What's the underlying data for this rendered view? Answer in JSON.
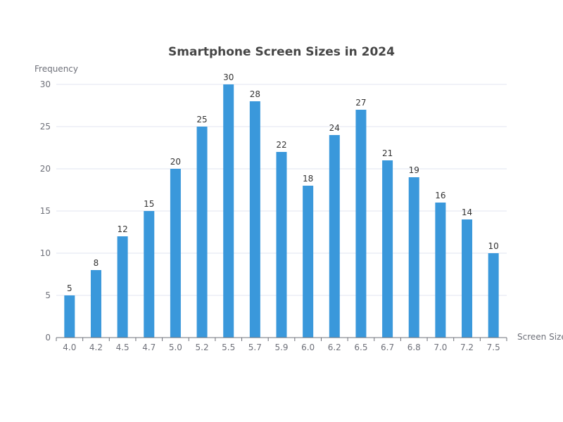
{
  "chart_data": {
    "type": "bar",
    "title": "Smartphone Screen Sizes in 2024",
    "xlabel": "Screen Size",
    "ylabel": "Frequency",
    "categories": [
      "4.0",
      "4.2",
      "4.5",
      "4.7",
      "5.0",
      "5.2",
      "5.5",
      "5.7",
      "5.9",
      "6.0",
      "6.2",
      "6.5",
      "6.7",
      "6.8",
      "7.0",
      "7.2",
      "7.5"
    ],
    "values": [
      5,
      8,
      12,
      15,
      20,
      25,
      30,
      28,
      22,
      18,
      24,
      27,
      21,
      19,
      16,
      14,
      10
    ],
    "ylim": [
      0,
      30
    ],
    "yticks": [
      0,
      5,
      10,
      15,
      20,
      25,
      30
    ],
    "grid": true,
    "legend": "none",
    "colors": {
      "bar": "#3a98db",
      "grid": "#e0e6f1",
      "axis": "#6e7079",
      "title": "#464646",
      "label": "#333333"
    }
  }
}
